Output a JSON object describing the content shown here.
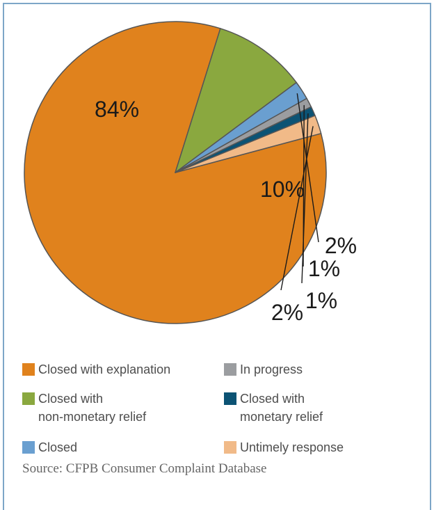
{
  "chart_data": {
    "type": "pie",
    "slices": [
      {
        "label": "Closed with explanation",
        "value": 84,
        "color": "#e0821d",
        "pct_label": "84%"
      },
      {
        "label": "Closed with non-monetary relief",
        "value": 10,
        "color": "#8aa83f",
        "pct_label": "10%"
      },
      {
        "label": "Closed",
        "value": 2,
        "color": "#6a9fd0",
        "pct_label": "2%"
      },
      {
        "label": "In progress",
        "value": 1,
        "color": "#9b9da0",
        "pct_label": "1%"
      },
      {
        "label": "Closed with monetary relief",
        "value": 1,
        "color": "#0c5374",
        "pct_label": "1%"
      },
      {
        "label": "Untimely response",
        "value": 2,
        "color": "#f1ba88",
        "pct_label": "2%"
      }
    ],
    "legend": [
      {
        "label": "Closed with explanation",
        "color": "#e0821d"
      },
      {
        "label": "In progress",
        "color": "#9b9da0"
      },
      {
        "label": "Closed with\nnon-monetary relief",
        "color": "#8aa83f"
      },
      {
        "label": "Closed with\nmonetary relief",
        "color": "#0c5374"
      },
      {
        "label": "Closed",
        "color": "#6a9fd0"
      },
      {
        "label": "Untimely response",
        "color": "#f1ba88"
      }
    ]
  },
  "source": "Source: CFPB Consumer Complaint Database"
}
